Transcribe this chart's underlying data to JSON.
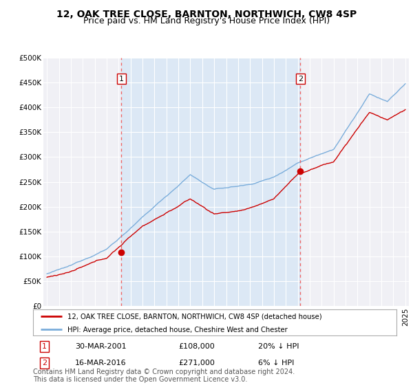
{
  "title": "12, OAK TREE CLOSE, BARNTON, NORTHWICH, CW8 4SP",
  "subtitle": "Price paid vs. HM Land Registry's House Price Index (HPI)",
  "ylabel_ticks": [
    "£0",
    "£50K",
    "£100K",
    "£150K",
    "£200K",
    "£250K",
    "£300K",
    "£350K",
    "£400K",
    "£450K",
    "£500K"
  ],
  "ytick_values": [
    0,
    50000,
    100000,
    150000,
    200000,
    250000,
    300000,
    350000,
    400000,
    450000,
    500000
  ],
  "xlim_left": 1994.7,
  "xlim_right": 2025.3,
  "ylim": [
    0,
    500000
  ],
  "background_color": "#ffffff",
  "plot_bg_color": "#f0f0f5",
  "grid_color": "#ffffff",
  "shade_color": "#dce8f5",
  "sale1": {
    "year": 2001.23,
    "price": 108000,
    "label": "1",
    "date": "30-MAR-2001",
    "hpi_diff": "20% ↓ HPI"
  },
  "sale2": {
    "year": 2016.21,
    "price": 271000,
    "label": "2",
    "date": "16-MAR-2016",
    "hpi_diff": "6% ↓ HPI"
  },
  "legend1_label": "12, OAK TREE CLOSE, BARNTON, NORTHWICH, CW8 4SP (detached house)",
  "legend2_label": "HPI: Average price, detached house, Cheshire West and Chester",
  "footer": "Contains HM Land Registry data © Crown copyright and database right 2024.\nThis data is licensed under the Open Government Licence v3.0.",
  "line_red_color": "#cc0000",
  "line_blue_color": "#7aaddb",
  "vline_color": "#ee6666",
  "sale_marker_color": "#cc0000",
  "title_fontsize": 10,
  "subtitle_fontsize": 9,
  "tick_fontsize": 7.5,
  "footer_fontsize": 7
}
